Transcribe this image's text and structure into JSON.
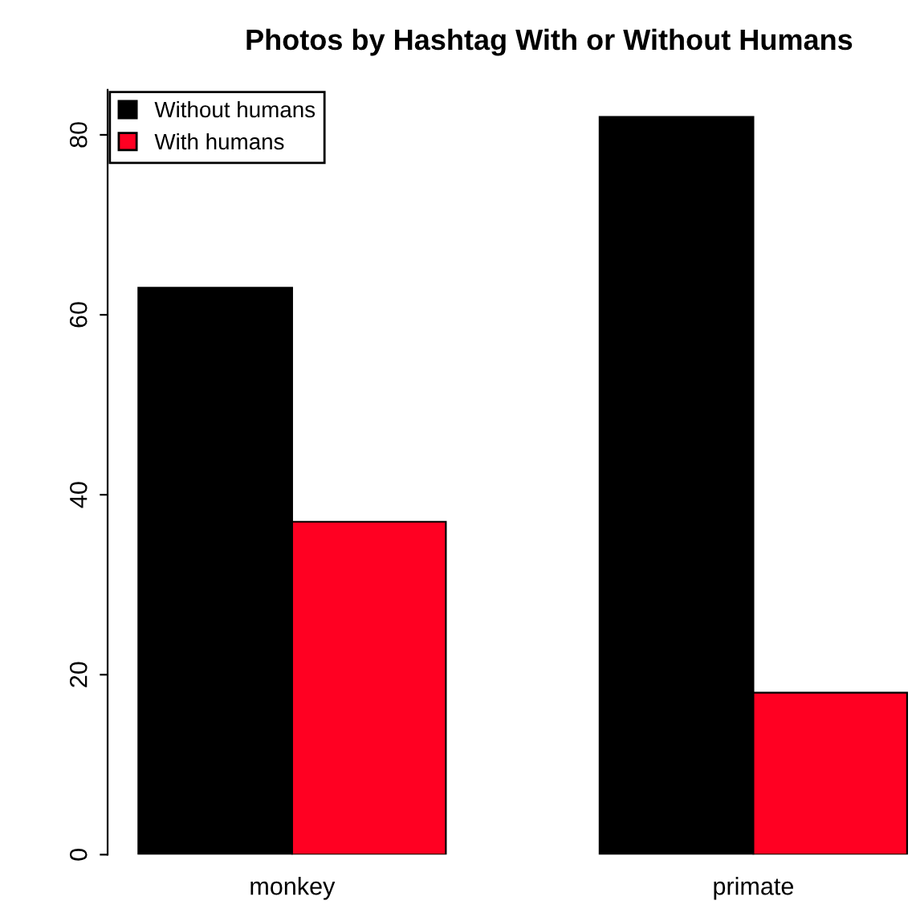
{
  "chart_data": {
    "type": "bar",
    "title": "Photos by Hashtag With or Without Humans",
    "categories": [
      "monkey",
      "primate"
    ],
    "series": [
      {
        "name": "Without humans",
        "color": "#000000",
        "values": [
          63,
          82
        ]
      },
      {
        "name": "With humans",
        "color": "#ff0022",
        "values": [
          37,
          18
        ]
      }
    ],
    "ylim": [
      0,
      85
    ],
    "yticks": [
      0,
      20,
      40,
      60,
      80
    ],
    "legend": "top left",
    "grid": false
  }
}
